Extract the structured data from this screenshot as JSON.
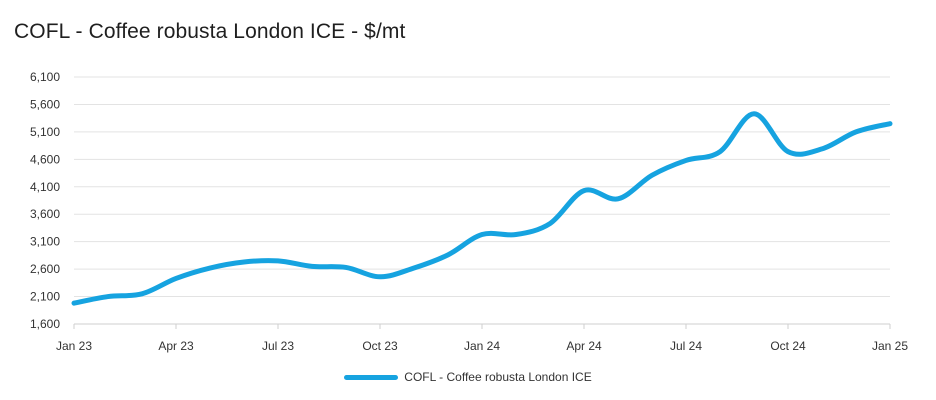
{
  "chart_data": {
    "type": "line",
    "title": "COFL - Coffee robusta London ICE - $/mt",
    "xlabel": "",
    "ylabel": "",
    "ylim": [
      1600,
      6100
    ],
    "yticks": [
      "1,600",
      "2,100",
      "2,600",
      "3,100",
      "3,600",
      "4,100",
      "4,600",
      "5,100",
      "5,600",
      "6,100"
    ],
    "ytick_values": [
      1600,
      2100,
      2600,
      3100,
      3600,
      4100,
      4600,
      5100,
      5600,
      6100
    ],
    "xlim": [
      "2023-01",
      "2025-01"
    ],
    "xticks": [
      "Jan 23",
      "Apr 23",
      "Jul 23",
      "Oct 23",
      "Jan 24",
      "Apr 24",
      "Jul 24",
      "Oct 24",
      "Jan 25"
    ],
    "xtick_values": [
      "2023-01",
      "2023-04",
      "2023-07",
      "2023-10",
      "2024-01",
      "2024-04",
      "2024-07",
      "2024-10",
      "2025-01"
    ],
    "grid": true,
    "legend_position": "bottom-center",
    "series": [
      {
        "name": "COFL - Coffee robusta London ICE",
        "color": "#16a3e0",
        "x": [
          "2023-01",
          "2023-02",
          "2023-03",
          "2023-04",
          "2023-05",
          "2023-06",
          "2023-07",
          "2023-08",
          "2023-09",
          "2023-10",
          "2023-11",
          "2023-12",
          "2024-01",
          "2024-02",
          "2024-03",
          "2024-04",
          "2024-05",
          "2024-06",
          "2024-07",
          "2024-08",
          "2024-09",
          "2024-10",
          "2024-11",
          "2024-12",
          "2025-01"
        ],
        "values": [
          1980,
          2100,
          2150,
          2430,
          2620,
          2730,
          2750,
          2650,
          2630,
          2460,
          2620,
          2860,
          3230,
          3230,
          3430,
          4030,
          3880,
          4310,
          4580,
          4740,
          5430,
          4740,
          4790,
          5100,
          5250
        ]
      }
    ]
  }
}
